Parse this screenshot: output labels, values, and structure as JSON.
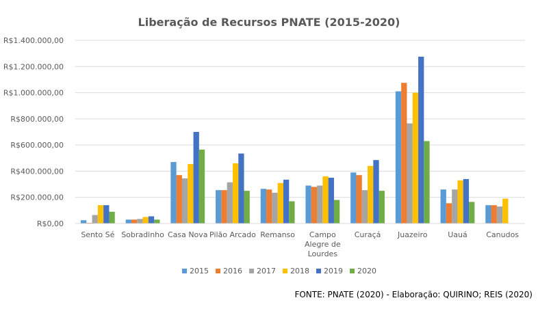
{
  "chart_data": {
    "type": "bar",
    "title": "Liberação de Recursos PNATE (2015-2020)",
    "xlabel": "",
    "ylabel": "",
    "ylim": [
      0,
      1400000
    ],
    "y_ticks": [
      0,
      200000,
      400000,
      600000,
      800000,
      1000000,
      1200000,
      1400000
    ],
    "y_tick_labels": [
      "R$0,00",
      "R$200.000,00",
      "R$400.000,00",
      "R$600.000,00",
      "R$800.000,00",
      "R$1.000.000,00",
      "R$1.200.000,00",
      "R$1.400.000,00"
    ],
    "grid": true,
    "legend_position": "bottom",
    "categories": [
      "Sento Sé",
      "Sobradinho",
      "Casa Nova",
      "Pilão Arcado",
      "Remanso",
      "Campo Alegre de Lourdes",
      "Curaçá",
      "Juazeiro",
      "Uauá",
      "Canudos"
    ],
    "category_label_lines": [
      [
        "Sento Sé"
      ],
      [
        "Sobradinho"
      ],
      [
        "Casa Nova"
      ],
      [
        "Pilão Arcado"
      ],
      [
        "Remanso"
      ],
      [
        "Campo",
        "Alegre de",
        "Lourdes"
      ],
      [
        "Curaçá"
      ],
      [
        "Juazeiro"
      ],
      [
        "Uauá"
      ],
      [
        "Canudos"
      ]
    ],
    "series": [
      {
        "name": "2015",
        "color": "#5B9BD5",
        "values": [
          25000,
          30000,
          470000,
          255000,
          265000,
          290000,
          390000,
          1010000,
          260000,
          140000
        ]
      },
      {
        "name": "2016",
        "color": "#ED7D31",
        "values": [
          5000,
          30000,
          370000,
          255000,
          260000,
          280000,
          370000,
          1075000,
          155000,
          140000
        ]
      },
      {
        "name": "2017",
        "color": "#A5A5A5",
        "values": [
          65000,
          35000,
          345000,
          315000,
          235000,
          290000,
          255000,
          765000,
          260000,
          130000
        ]
      },
      {
        "name": "2018",
        "color": "#FFC000",
        "values": [
          140000,
          50000,
          455000,
          460000,
          310000,
          360000,
          440000,
          1000000,
          330000,
          190000
        ]
      },
      {
        "name": "2019",
        "color": "#4472C4",
        "values": [
          140000,
          55000,
          700000,
          535000,
          335000,
          350000,
          485000,
          1275000,
          340000,
          0
        ]
      },
      {
        "name": "2020",
        "color": "#70AD47",
        "values": [
          90000,
          30000,
          565000,
          250000,
          170000,
          180000,
          250000,
          630000,
          165000,
          0
        ]
      }
    ]
  },
  "source_note": "FONTE: PNATE (2020) - Elaboração: QUIRINO; REIS (2020)"
}
